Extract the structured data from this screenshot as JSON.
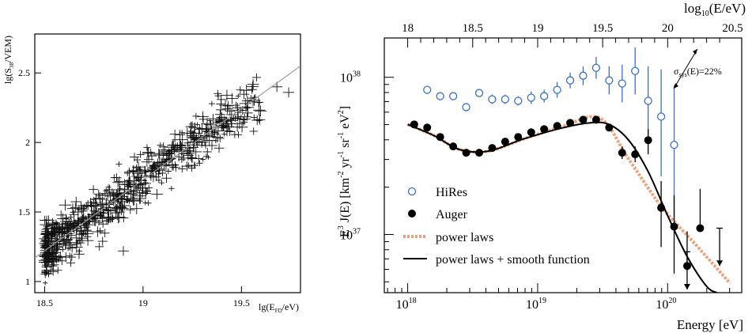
{
  "chart_data": [
    {
      "type": "scatter",
      "xlabel_main": "lg(E",
      "xlabel_sub": "FD",
      "xlabel_tail": "/eV)",
      "ylabel_main": "lg(S",
      "ylabel_sub": "38",
      "ylabel_tail": "/VEM)",
      "xlim": [
        18.45,
        19.8
      ],
      "ylim": [
        0.92,
        2.78
      ],
      "xticks": [
        18.5,
        19,
        19.5
      ],
      "xtick_labels": [
        "18.5",
        "19",
        "19.5"
      ],
      "yticks": [
        1,
        1.5,
        2,
        2.5
      ],
      "ytick_labels": [
        "1",
        "1.5",
        "2",
        "2.5"
      ],
      "fit_line": {
        "x": [
          18.45,
          19.8
        ],
        "y": [
          1.17,
          2.55
        ]
      },
      "points_summary": "dense cloud of roughly 700 events scattered around the fit line, about 1.05-1.55 at 18.5 rising to about 2.35-2.45 at 19.7",
      "points": [
        {
          "x": 18.52,
          "y": 1.32
        },
        {
          "x": 18.54,
          "y": 1.42
        },
        {
          "x": 18.55,
          "y": 1.25
        },
        {
          "x": 18.57,
          "y": 1.36
        },
        {
          "x": 18.58,
          "y": 1.18
        },
        {
          "x": 18.6,
          "y": 1.3
        },
        {
          "x": 18.61,
          "y": 1.45
        },
        {
          "x": 18.63,
          "y": 1.28
        },
        {
          "x": 18.65,
          "y": 1.38
        },
        {
          "x": 18.67,
          "y": 1.5
        },
        {
          "x": 18.7,
          "y": 1.42
        },
        {
          "x": 18.72,
          "y": 1.55
        },
        {
          "x": 18.75,
          "y": 1.48
        },
        {
          "x": 18.78,
          "y": 1.6
        },
        {
          "x": 18.8,
          "y": 1.52
        },
        {
          "x": 18.83,
          "y": 1.66
        },
        {
          "x": 18.85,
          "y": 1.58
        },
        {
          "x": 18.88,
          "y": 1.72
        },
        {
          "x": 18.9,
          "y": 1.22
        },
        {
          "x": 18.92,
          "y": 1.7
        },
        {
          "x": 18.95,
          "y": 1.8
        },
        {
          "x": 18.98,
          "y": 1.75
        },
        {
          "x": 19.02,
          "y": 1.86
        },
        {
          "x": 19.05,
          "y": 1.82
        },
        {
          "x": 19.08,
          "y": 1.92
        },
        {
          "x": 19.12,
          "y": 1.88
        },
        {
          "x": 19.15,
          "y": 1.98
        },
        {
          "x": 19.2,
          "y": 2.02
        },
        {
          "x": 19.25,
          "y": 2.05
        },
        {
          "x": 19.3,
          "y": 2.1
        },
        {
          "x": 19.35,
          "y": 2.08
        },
        {
          "x": 19.4,
          "y": 2.18
        },
        {
          "x": 19.45,
          "y": 2.2
        },
        {
          "x": 19.48,
          "y": 2.25
        },
        {
          "x": 19.53,
          "y": 2.3
        },
        {
          "x": 19.58,
          "y": 2.16
        },
        {
          "x": 19.68,
          "y": 2.4
        },
        {
          "x": 19.74,
          "y": 2.36
        }
      ]
    },
    {
      "type": "scatter",
      "xlabel": "Energy [eV]",
      "ylabel": "E^3 J(E) [km^-2 yr^-1 sr^-1 eV^2]",
      "top_axis_label_main": "log",
      "top_axis_label_sub": "10",
      "top_axis_label_tail": "(E/eV)",
      "log_y": true,
      "log_x": true,
      "xlim": [
        17.82,
        20.57
      ],
      "ylim_log10": [
        36.63,
        38.25
      ],
      "xticks": [
        18,
        19,
        20
      ],
      "xtick_labels_base": [
        "10",
        "10",
        "10"
      ],
      "xtick_labels_exp": [
        "18",
        "19",
        "20"
      ],
      "yticks": [
        37,
        38
      ],
      "ytick_labels_base": [
        "10",
        "10"
      ],
      "ytick_labels_exp": [
        "37",
        "38"
      ],
      "top_xticks": [
        18,
        18.5,
        19,
        19.5,
        20,
        20.5
      ],
      "top_xtick_labels": [
        "18",
        "18.5",
        "19",
        "19.5",
        "20",
        "20.5"
      ],
      "annotation_main": "σ",
      "annotation_sub": "sys",
      "annotation_tail": "(E)=22%",
      "legend_placement": "bottom-left",
      "series": [
        {
          "name": "HiRes",
          "marker": "open-circle",
          "color": "#3a6fd0",
          "points": [
            {
              "x": 18.15,
              "y": 37.92
            },
            {
              "x": 18.25,
              "y": 37.88
            },
            {
              "x": 18.35,
              "y": 37.88
            },
            {
              "x": 18.45,
              "y": 37.81
            },
            {
              "x": 18.55,
              "y": 37.9
            },
            {
              "x": 18.65,
              "y": 37.86
            },
            {
              "x": 18.75,
              "y": 37.86
            },
            {
              "x": 18.85,
              "y": 37.85
            },
            {
              "x": 18.95,
              "y": 37.87
            },
            {
              "x": 19.05,
              "y": 37.88
            },
            {
              "x": 19.15,
              "y": 37.92
            },
            {
              "x": 19.25,
              "y": 37.98
            },
            {
              "x": 19.35,
              "y": 38.01
            },
            {
              "x": 19.45,
              "y": 38.06
            },
            {
              "x": 19.55,
              "y": 37.98
            },
            {
              "x": 19.65,
              "y": 37.96
            },
            {
              "x": 19.75,
              "y": 38.04
            },
            {
              "x": 19.85,
              "y": 37.85
            },
            {
              "x": 19.95,
              "y": 37.75
            },
            {
              "x": 20.05,
              "y": 37.57
            }
          ],
          "err_up": [
            0.02,
            0.02,
            0.02,
            0.02,
            0.02,
            0.03,
            0.03,
            0.03,
            0.04,
            0.04,
            0.05,
            0.05,
            0.06,
            0.07,
            0.09,
            0.12,
            0.15,
            0.22,
            0.3,
            0.38
          ],
          "err_dn": [
            0.02,
            0.02,
            0.02,
            0.02,
            0.02,
            0.03,
            0.03,
            0.03,
            0.04,
            0.04,
            0.05,
            0.05,
            0.06,
            0.07,
            0.09,
            0.12,
            0.15,
            0.25,
            0.38,
            0.55
          ]
        },
        {
          "name": "Auger",
          "marker": "filled-circle",
          "color": "#000000",
          "points": [
            {
              "x": 18.05,
              "y": 37.7
            },
            {
              "x": 18.15,
              "y": 37.68
            },
            {
              "x": 18.25,
              "y": 37.62
            },
            {
              "x": 18.35,
              "y": 37.56
            },
            {
              "x": 18.45,
              "y": 37.52
            },
            {
              "x": 18.55,
              "y": 37.52
            },
            {
              "x": 18.65,
              "y": 37.55
            },
            {
              "x": 18.75,
              "y": 37.59
            },
            {
              "x": 18.85,
              "y": 37.62
            },
            {
              "x": 18.95,
              "y": 37.65
            },
            {
              "x": 19.05,
              "y": 37.67
            },
            {
              "x": 19.15,
              "y": 37.69
            },
            {
              "x": 19.25,
              "y": 37.71
            },
            {
              "x": 19.35,
              "y": 37.73
            },
            {
              "x": 19.45,
              "y": 37.73
            },
            {
              "x": 19.55,
              "y": 37.68
            },
            {
              "x": 19.65,
              "y": 37.52
            },
            {
              "x": 19.75,
              "y": 37.51
            },
            {
              "x": 19.85,
              "y": 37.6
            },
            {
              "x": 19.95,
              "y": 37.17
            },
            {
              "x": 20.05,
              "y": 37.05
            },
            {
              "x": 20.15,
              "y": 36.8
            },
            {
              "x": 20.25,
              "y": 37.04
            }
          ],
          "err_up": [
            0.01,
            0.01,
            0.01,
            0.01,
            0.01,
            0.01,
            0.01,
            0.01,
            0.01,
            0.02,
            0.02,
            0.02,
            0.02,
            0.02,
            0.02,
            0.03,
            0.04,
            0.05,
            0.07,
            0.17,
            0.2,
            0.22,
            0.25
          ],
          "err_dn": [
            0.01,
            0.01,
            0.01,
            0.01,
            0.01,
            0.01,
            0.01,
            0.01,
            0.01,
            0.02,
            0.02,
            0.02,
            0.02,
            0.02,
            0.02,
            0.03,
            0.04,
            0.05,
            0.09,
            0.25,
            0.3,
            0.0,
            0.0
          ],
          "upper_limits": [
            {
              "x": 20.15,
              "y_top": 36.89,
              "y_tip": 36.65
            },
            {
              "x": 20.4,
              "y_top": 37.04,
              "y_tip": 36.8
            }
          ]
        },
        {
          "name": "power laws",
          "style": "dashed",
          "color": "#f0a078",
          "x": [
            18.0,
            18.2,
            18.4,
            18.62,
            18.9,
            19.2,
            19.48,
            19.7,
            19.95,
            20.2,
            20.48
          ],
          "y": [
            37.7,
            37.63,
            37.54,
            37.53,
            37.61,
            37.69,
            37.74,
            37.48,
            37.18,
            36.95,
            36.69
          ]
        },
        {
          "name": "power laws + smooth function",
          "style": "solid",
          "color": "#000000",
          "x": [
            18.0,
            18.2,
            18.4,
            18.62,
            18.9,
            19.2,
            19.4,
            19.55,
            19.7,
            19.85,
            20.0,
            20.15,
            20.3,
            20.38
          ],
          "y": [
            37.7,
            37.63,
            37.54,
            37.53,
            37.61,
            37.68,
            37.71,
            37.7,
            37.6,
            37.4,
            37.12,
            36.86,
            36.67,
            36.63
          ]
        }
      ]
    }
  ]
}
